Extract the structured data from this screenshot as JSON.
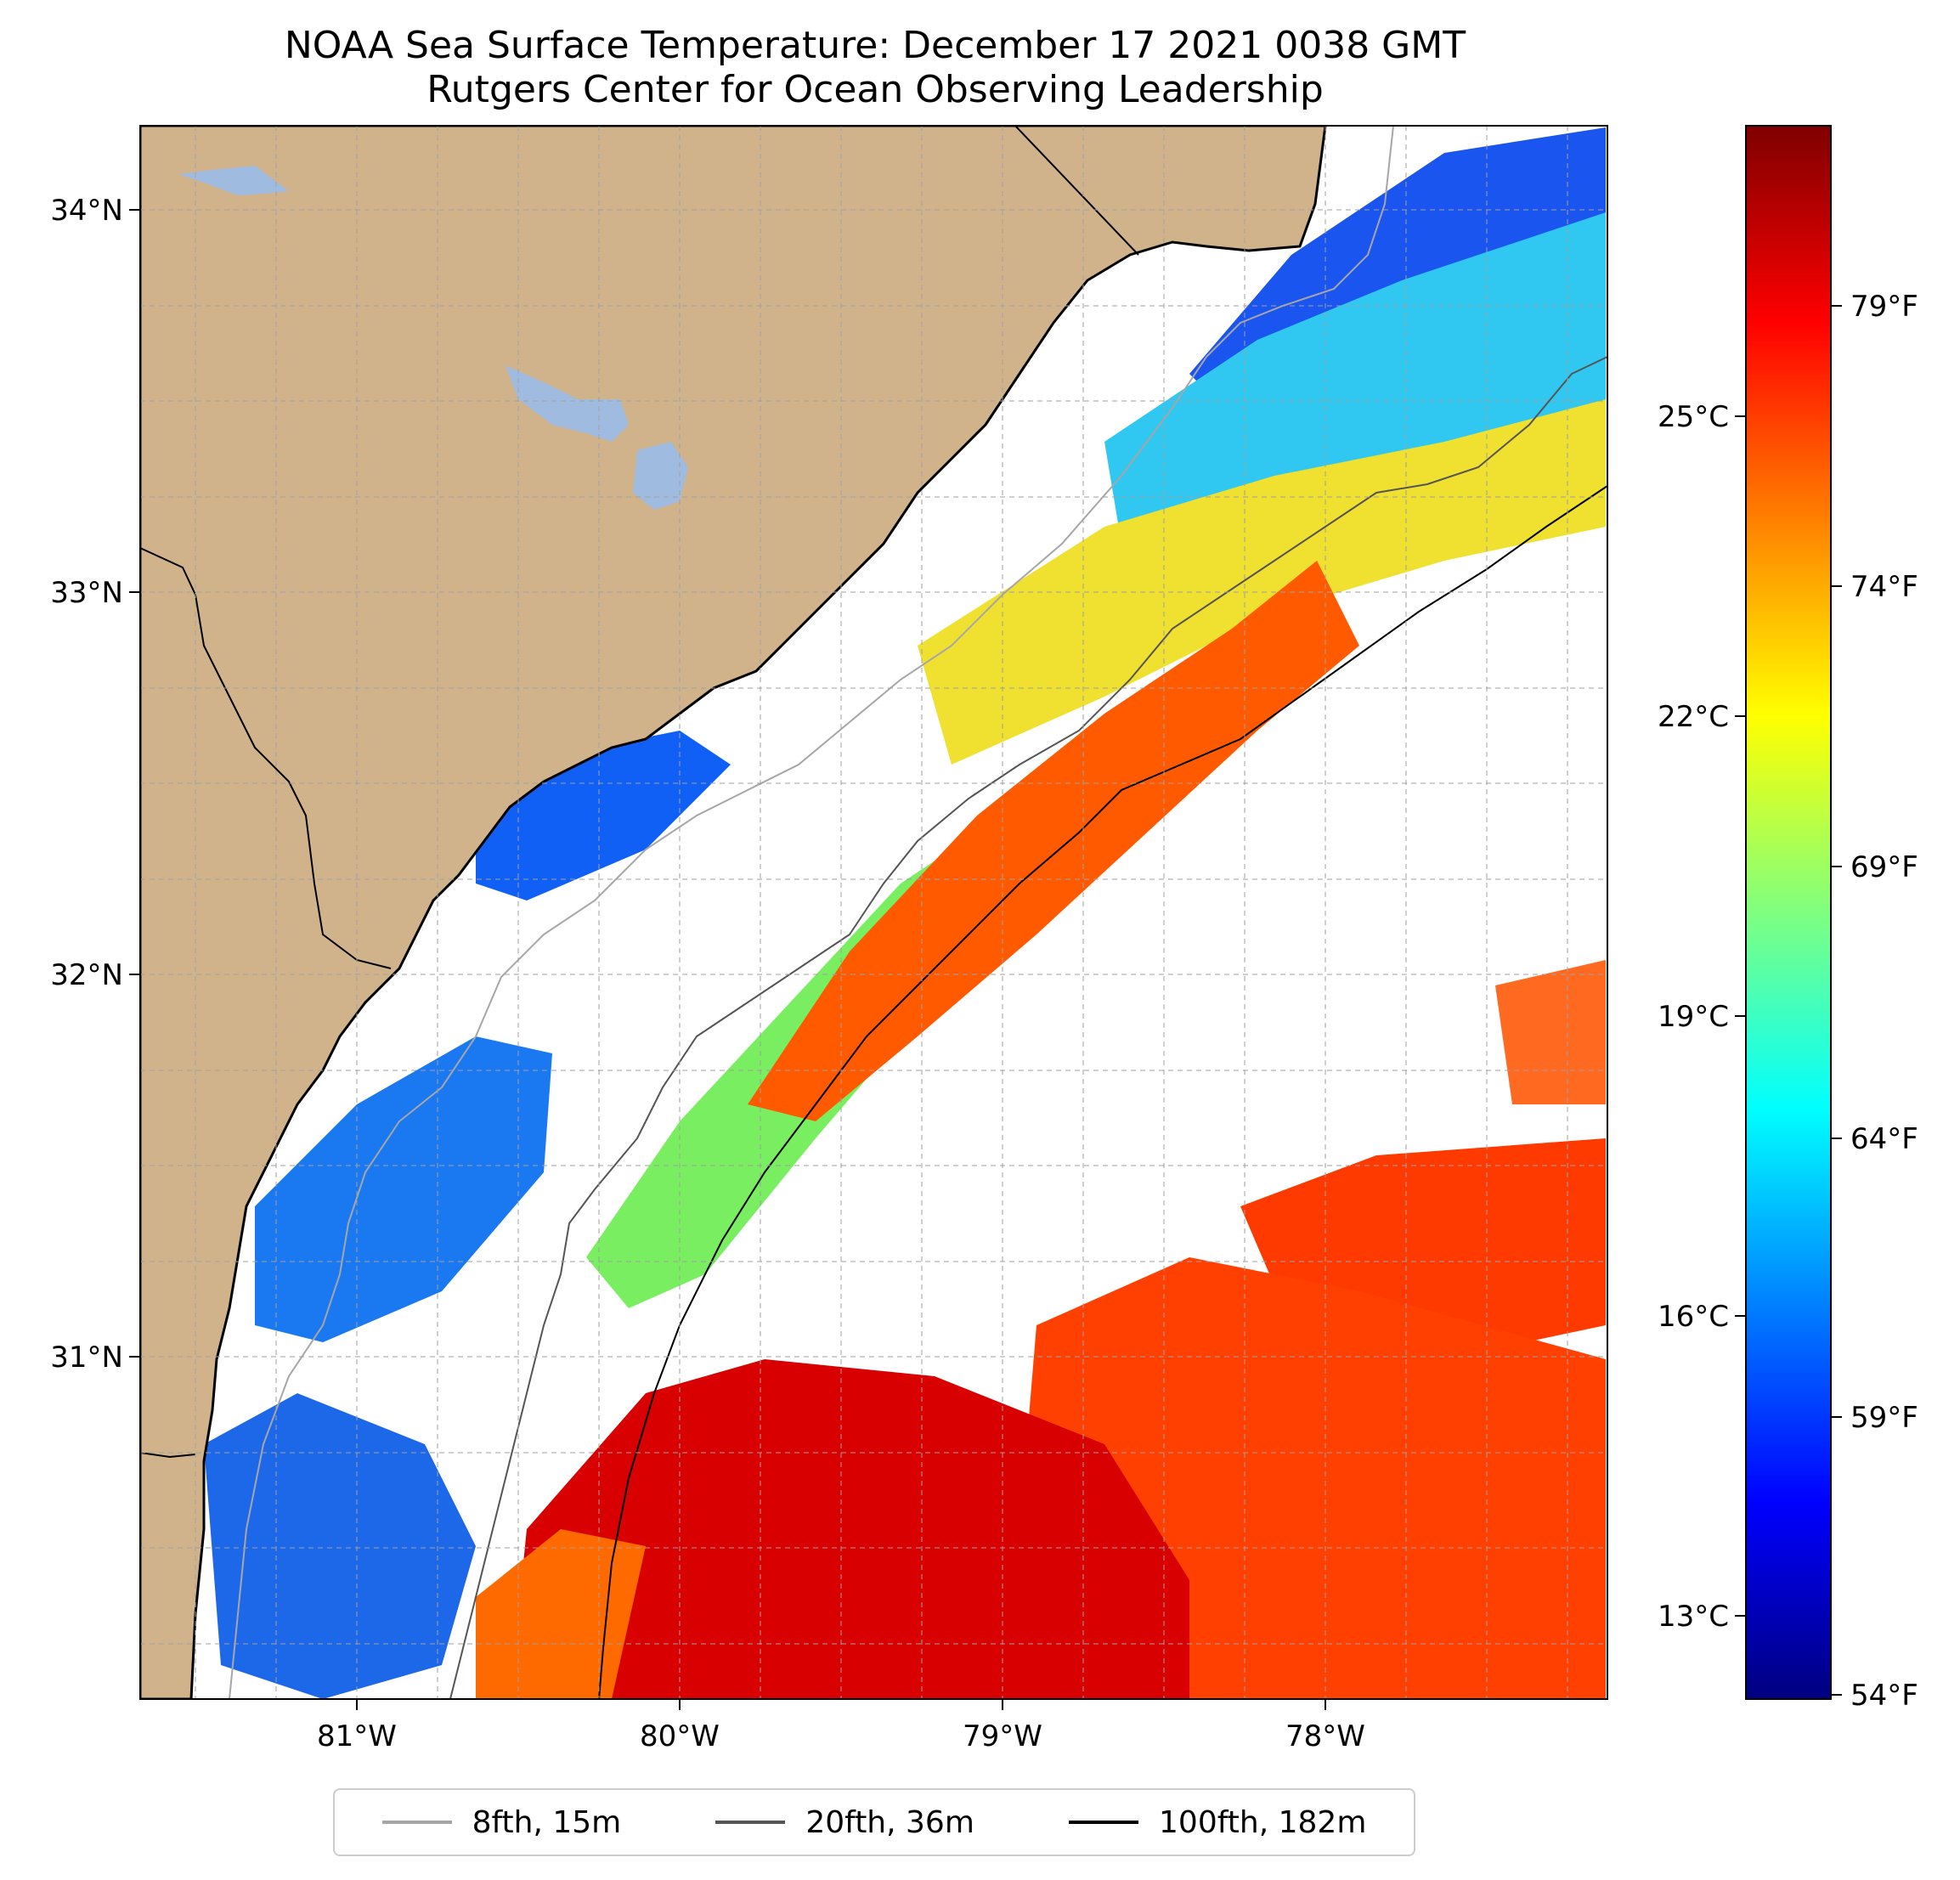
{
  "title": {
    "line1": "NOAA Sea Surface Temperature: December 17 2021 0038 GMT",
    "line2": "Rutgers Center for Ocean Observing Leadership"
  },
  "map": {
    "lon_range": [
      -81.68,
      -77.18
    ],
    "lat_range": [
      30.08,
      34.22
    ],
    "lat_ticks": [
      {
        "value": 34,
        "label": "34°N"
      },
      {
        "value": 33,
        "label": "33°N"
      },
      {
        "value": 32,
        "label": "32°N"
      },
      {
        "value": 31,
        "label": "31°N"
      }
    ],
    "lon_ticks": [
      {
        "value": -81,
        "label": "81°W"
      },
      {
        "value": -80,
        "label": "80°W"
      },
      {
        "value": -79,
        "label": "79°W"
      },
      {
        "value": -78,
        "label": "78°W"
      }
    ],
    "grid": true,
    "colors": {
      "land": "#d0b38b",
      "lake": "#9fbbe0",
      "ocean_nodata": "#ffffff"
    }
  },
  "colorbar": {
    "colormap": "jet",
    "fahrenheit_ticks": [
      "79°F",
      "74°F",
      "69°F",
      "64°F",
      "59°F",
      "54°F"
    ],
    "celsius_ticks": [
      "25°C",
      "22°C",
      "19°C",
      "16°C",
      "13°C"
    ]
  },
  "legend": {
    "items": [
      {
        "label": "8fth, 15m",
        "color": "#a6a6a6"
      },
      {
        "label": "20fth, 36m",
        "color": "#555555"
      },
      {
        "label": "100fth, 182m",
        "color": "#000000"
      }
    ]
  }
}
